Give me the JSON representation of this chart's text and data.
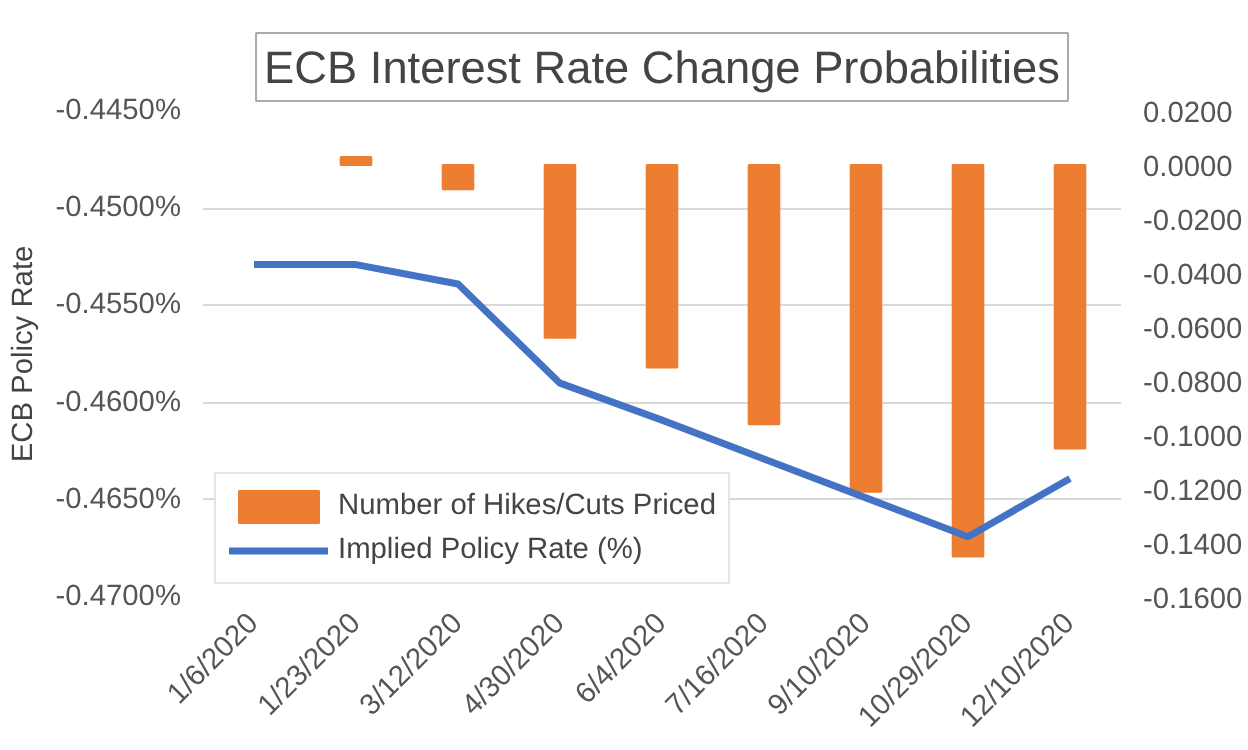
{
  "chart_data": {
    "type": "bar",
    "title": "ECB Interest Rate Change Probabilities",
    "ylabel": "ECB Policy Rate",
    "categories": [
      "1/6/2020",
      "1/23/2020",
      "3/12/2020",
      "4/30/2020",
      "6/4/2020",
      "7/16/2020",
      "9/10/2020",
      "10/29/2020",
      "12/10/2020"
    ],
    "series": [
      {
        "name": "Number of Hikes/Cuts Priced",
        "axis": "y2",
        "color": "#ed7d31",
        "values": [
          null,
          0.003,
          -0.009,
          -0.064,
          -0.075,
          -0.096,
          -0.121,
          -0.145,
          -0.105
        ]
      },
      {
        "name": "Implied Policy Rate (%)",
        "type": "line",
        "color": "#4472c4",
        "values": [
          -0.4529,
          -0.4529,
          -0.4539,
          -0.459,
          -0.4609,
          -0.4629,
          -0.4649,
          -0.4669,
          -0.4639
        ]
      }
    ],
    "ylim": [
      -0.47,
      -0.445
    ],
    "yticks": [
      {
        "value": -0.47,
        "label": "-0.4700%"
      },
      {
        "value": -0.465,
        "label": "-0.4650%"
      },
      {
        "value": -0.46,
        "label": "-0.4600%"
      },
      {
        "value": -0.455,
        "label": "-0.4550%"
      },
      {
        "value": -0.45,
        "label": "-0.4500%"
      },
      {
        "value": -0.445,
        "label": "-0.4450%"
      }
    ],
    "y2lim": [
      -0.16,
      0.02
    ],
    "y2ticks": [
      {
        "value": -0.16,
        "label": "-0.1600"
      },
      {
        "value": -0.14,
        "label": "-0.1400"
      },
      {
        "value": -0.12,
        "label": "-0.1200"
      },
      {
        "value": -0.1,
        "label": "-0.1000"
      },
      {
        "value": -0.08,
        "label": "-0.0800"
      },
      {
        "value": -0.06,
        "label": "-0.0600"
      },
      {
        "value": -0.04,
        "label": "-0.0400"
      },
      {
        "value": -0.02,
        "label": "-0.0200"
      },
      {
        "value": 0,
        "label": "0.0000"
      },
      {
        "value": 0.02,
        "label": "0.0200"
      }
    ],
    "grid": "y",
    "legend": "bottom left"
  }
}
